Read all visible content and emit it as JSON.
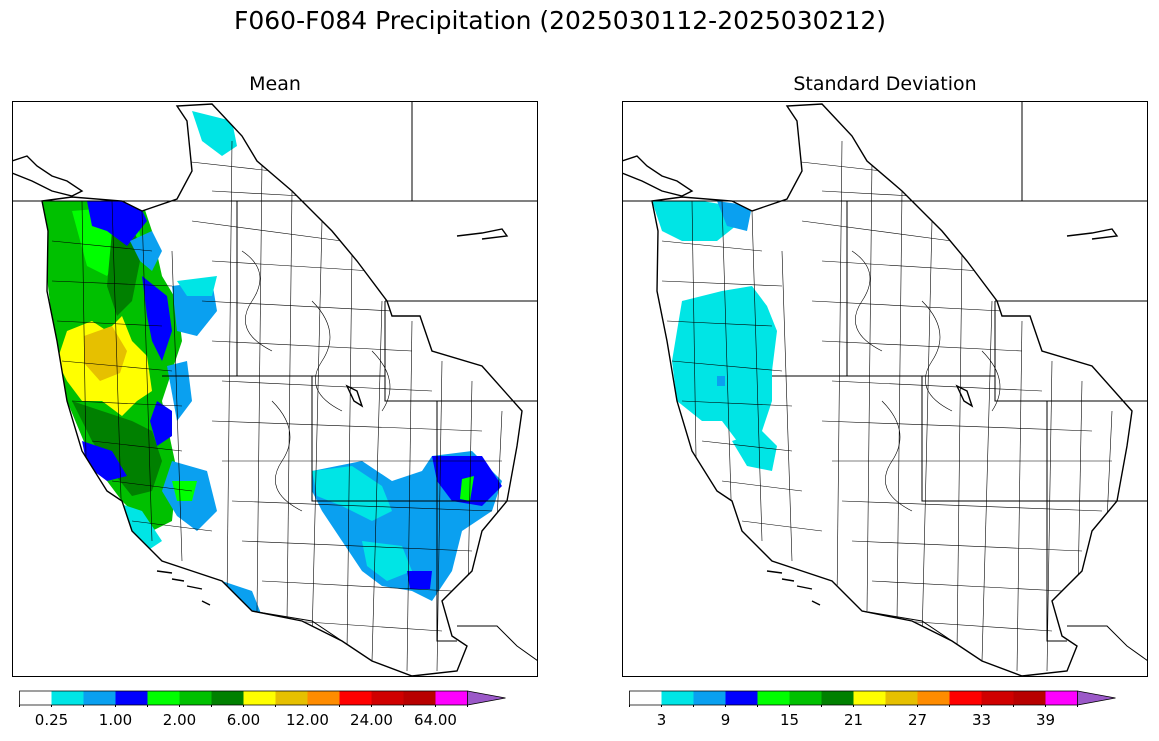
{
  "figure": {
    "title": "F060-F084 Precipitation (2025030112-2025030212)"
  },
  "panels": [
    {
      "id": "mean",
      "title": "Mean",
      "colorbar": {
        "colors": [
          "#ffffff",
          "#00e5e5",
          "#0aa0f0",
          "#0000ff",
          "#00ff00",
          "#00c000",
          "#008000",
          "#ffff00",
          "#e6c000",
          "#ff8c00",
          "#ff0000",
          "#d00000",
          "#b80000",
          "#ff00ff",
          "#9b59c8"
        ],
        "extend": "max",
        "tick_labels": [
          "0.25",
          "1.00",
          "2.00",
          "6.00",
          "12.00",
          "24.00",
          "64.00"
        ],
        "tick_boundary_index": [
          1,
          3,
          5,
          7,
          9,
          11,
          13
        ]
      }
    },
    {
      "id": "stddev",
      "title": "Standard Deviation",
      "colorbar": {
        "colors": [
          "#ffffff",
          "#00e5e5",
          "#0aa0f0",
          "#0000ff",
          "#00ff00",
          "#00c000",
          "#008000",
          "#ffff00",
          "#e6c000",
          "#ff8c00",
          "#ff0000",
          "#d00000",
          "#b80000",
          "#ff00ff",
          "#9b59c8"
        ],
        "extend": "max",
        "tick_labels": [
          "3",
          "9",
          "15",
          "21",
          "27",
          "33",
          "39"
        ],
        "tick_boundary_index": [
          1,
          3,
          5,
          7,
          9,
          11,
          13
        ]
      }
    }
  ],
  "legend_colors": {
    "coast_line": "#000000",
    "state_line": "#000000",
    "basin_line": "#000000"
  }
}
